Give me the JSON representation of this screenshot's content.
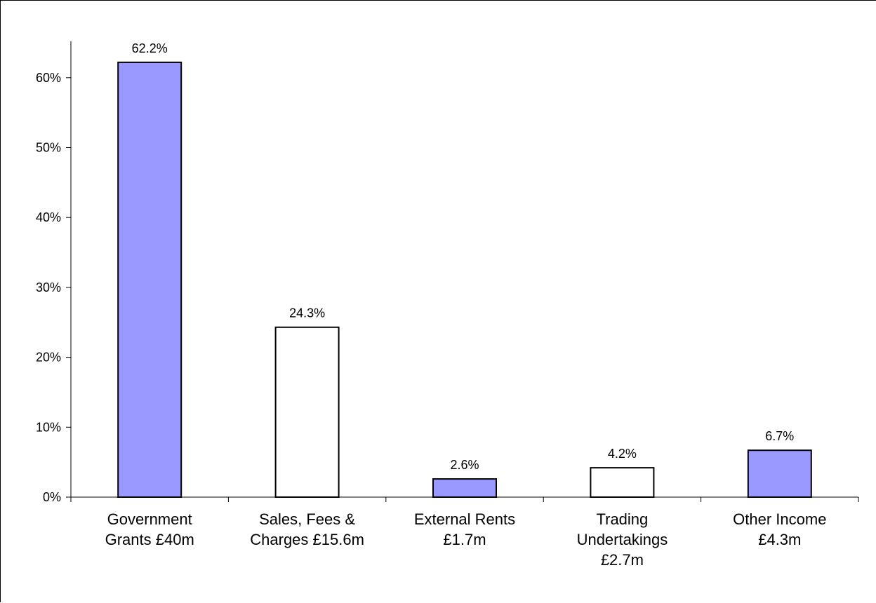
{
  "chart_data": {
    "type": "bar",
    "categories": [
      [
        "Government",
        "Grants £40m"
      ],
      [
        "Sales, Fees &",
        "Charges £15.6m"
      ],
      [
        "External Rents",
        "£1.7m"
      ],
      [
        "Trading",
        "Undertakings",
        "£2.7m"
      ],
      [
        "Other Income",
        "£4.3m"
      ]
    ],
    "values": [
      62.2,
      24.3,
      2.6,
      4.2,
      6.7
    ],
    "data_labels": [
      "62.2%",
      "24.3%",
      "2.6%",
      "4.2%",
      "6.7%"
    ],
    "bar_fills": [
      "#9999ff",
      "#ffffff",
      "#9999ff",
      "#ffffff",
      "#9999ff"
    ],
    "bar_stroke": "#000000",
    "ylim": [
      0,
      70
    ],
    "yticks": [
      0,
      10,
      20,
      30,
      40,
      50,
      60
    ],
    "ytick_labels": [
      "0%",
      "10%",
      "20%",
      "30%",
      "40%",
      "50%",
      "60%"
    ],
    "grid": false,
    "legend": false
  }
}
